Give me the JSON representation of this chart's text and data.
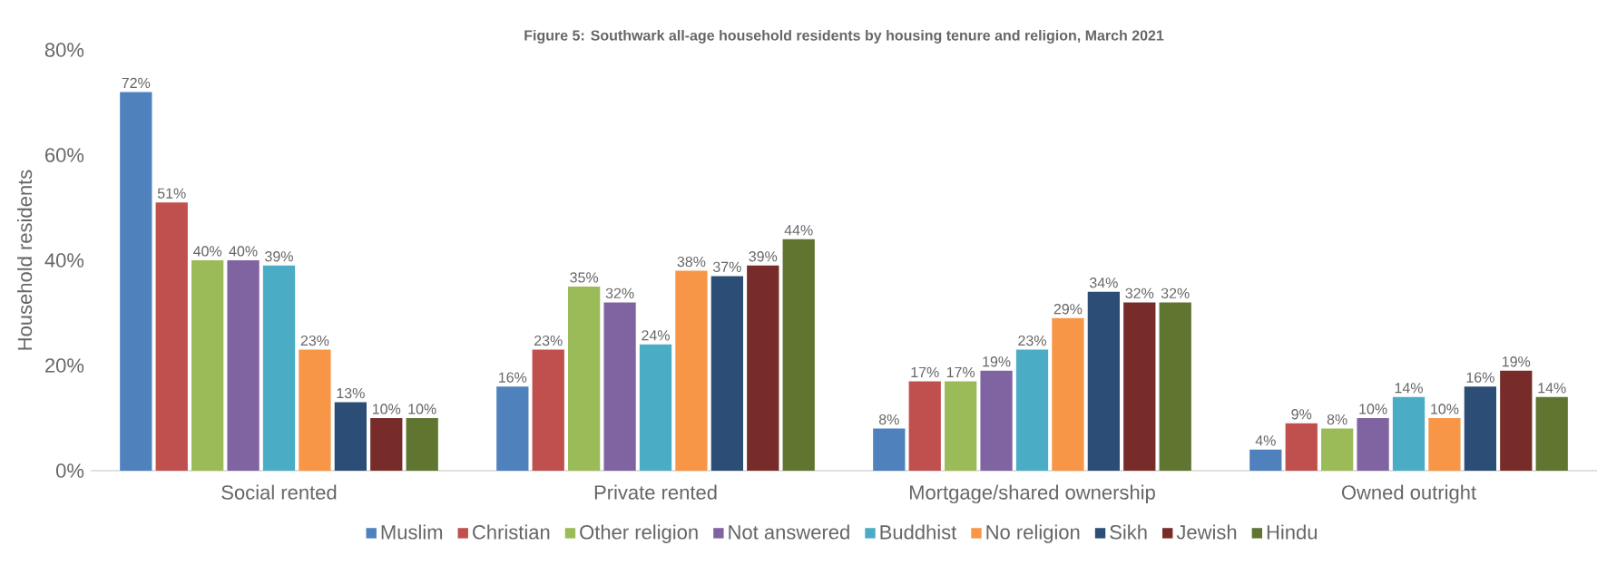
{
  "chart_data": {
    "type": "bar",
    "title": "Figure 5: Southwark all-age household residents by housing tenure and religion, March 2021",
    "ylabel": "Household residents",
    "categories": [
      "Social rented",
      "Private rented",
      "Mortgage/shared ownership",
      "Owned outright"
    ],
    "series": [
      {
        "name": "Muslim",
        "color": "#4f81bd",
        "values": [
          72,
          16,
          8,
          4
        ],
        "value_labels": [
          "72%",
          "16%",
          "8%",
          "4%"
        ]
      },
      {
        "name": "Christian",
        "color": "#c0504d",
        "values": [
          51,
          23,
          17,
          9
        ],
        "value_labels": [
          "51%",
          "23%",
          "17%",
          "9%"
        ]
      },
      {
        "name": "Other religion",
        "color": "#9bbb59",
        "values": [
          40,
          35,
          17,
          8
        ],
        "value_labels": [
          "40%",
          "35%",
          "17%",
          "8%"
        ]
      },
      {
        "name": "Not answered",
        "color": "#8064a2",
        "values": [
          40,
          32,
          19,
          10
        ],
        "value_labels": [
          "40%",
          "32%",
          "19%",
          "10%"
        ]
      },
      {
        "name": "Buddhist",
        "color": "#4bacc6",
        "values": [
          39,
          24,
          23,
          14
        ],
        "value_labels": [
          "39%",
          "24%",
          "23%",
          "14%"
        ]
      },
      {
        "name": "No religion",
        "color": "#f79646",
        "values": [
          23,
          38,
          29,
          10
        ],
        "value_labels": [
          "23%",
          "38%",
          "29%",
          "10%"
        ]
      },
      {
        "name": "Sikh",
        "color": "#2c4d75",
        "values": [
          13,
          37,
          34,
          16
        ],
        "value_labels": [
          "13%",
          "37%",
          "34%",
          "16%"
        ]
      },
      {
        "name": "Jewish",
        "color": "#772c2a",
        "values": [
          10,
          39,
          32,
          19
        ],
        "value_labels": [
          "10%",
          "39%",
          "32%",
          "19%"
        ]
      },
      {
        "name": "Hindu",
        "color": "#5f7530",
        "values": [
          10,
          44,
          32,
          14
        ],
        "value_labels": [
          "10%",
          "44%",
          "32%",
          "14%"
        ]
      }
    ],
    "ylim": [
      0,
      80
    ],
    "yticks": [
      {
        "value": 0,
        "label": "0%"
      },
      {
        "value": 20,
        "label": "20%"
      },
      {
        "value": 40,
        "label": "40%"
      },
      {
        "value": 60,
        "label": "60%"
      },
      {
        "value": 80,
        "label": "80%"
      }
    ],
    "grid": false,
    "legend": "bottom"
  }
}
